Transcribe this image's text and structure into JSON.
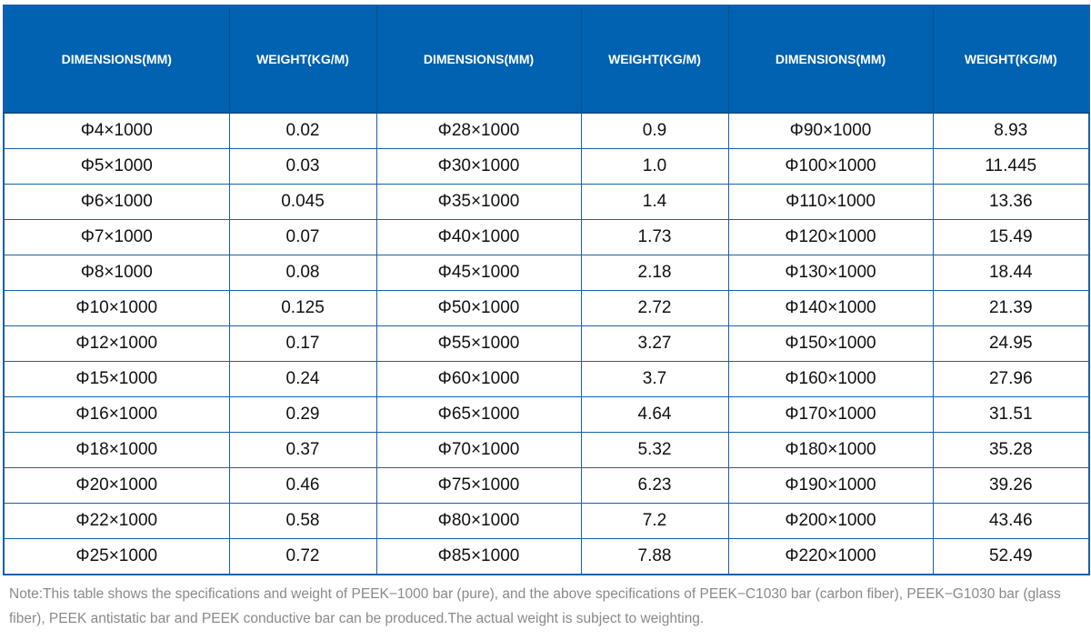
{
  "table": {
    "headers": [
      "DIMENSIONS(MM)",
      "WEIGHT(KG/M)",
      "DIMENSIONS(MM)",
      "WEIGHT(KG/M)",
      "DIMENSIONS(MM)",
      "WEIGHT(KG/M)"
    ],
    "rows": [
      [
        "Φ4×1000",
        "0.02",
        "Φ28×1000",
        "0.9",
        "Φ90×1000",
        "8.93"
      ],
      [
        "Φ5×1000",
        "0.03",
        "Φ30×1000",
        "1.0",
        "Φ100×1000",
        "11.445"
      ],
      [
        "Φ6×1000",
        "0.045",
        "Φ35×1000",
        "1.4",
        "Φ110×1000",
        "13.36"
      ],
      [
        "Φ7×1000",
        "0.07",
        "Φ40×1000",
        "1.73",
        "Φ120×1000",
        "15.49"
      ],
      [
        "Φ8×1000",
        "0.08",
        "Φ45×1000",
        "2.18",
        "Φ130×1000",
        "18.44"
      ],
      [
        "Φ10×1000",
        "0.125",
        "Φ50×1000",
        "2.72",
        "Φ140×1000",
        "21.39"
      ],
      [
        "Φ12×1000",
        "0.17",
        "Φ55×1000",
        "3.27",
        "Φ150×1000",
        "24.95"
      ],
      [
        "Φ15×1000",
        "0.24",
        "Φ60×1000",
        "3.7",
        "Φ160×1000",
        "27.96"
      ],
      [
        "Φ16×1000",
        "0.29",
        "Φ65×1000",
        "4.64",
        "Φ170×1000",
        "31.51"
      ],
      [
        "Φ18×1000",
        "0.37",
        "Φ70×1000",
        "5.32",
        "Φ180×1000",
        "35.28"
      ],
      [
        "Φ20×1000",
        "0.46",
        "Φ75×1000",
        "6.23",
        "Φ190×1000",
        "39.26"
      ],
      [
        "Φ22×1000",
        "0.58",
        "Φ80×1000",
        "7.2",
        "Φ200×1000",
        "43.46"
      ],
      [
        "Φ25×1000",
        "0.72",
        "Φ85×1000",
        "7.88",
        "Φ220×1000",
        "52.49"
      ]
    ]
  },
  "note": "Note:This table shows the specifications and weight of PEEK−1000 bar (pure), and the above specifications of PEEK−C1030 bar (carbon fiber), PEEK−G1030 bar (glass fiber), PEEK antistatic bar and PEEK conductive bar can be produced.The actual weight is subject to weighting.",
  "colors": {
    "header_bg": "#0062b0",
    "border": "#1a5fa8",
    "note_text": "#8a8a8a"
  }
}
